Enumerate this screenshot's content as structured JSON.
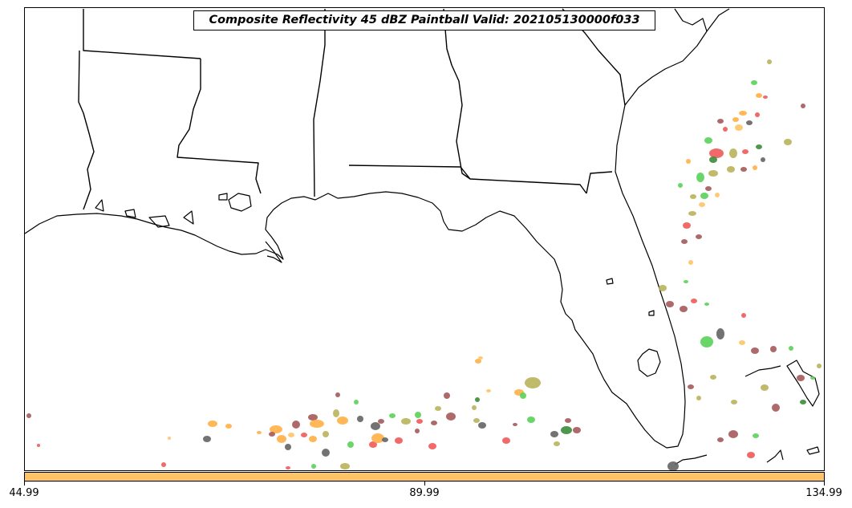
{
  "title": "Composite Reflectivity 45 dBZ Paintball Valid: 202105130000f033",
  "colorbar": {
    "color": "#ffc466",
    "ticks": [
      "44.99",
      "89.99",
      "134.99"
    ]
  },
  "map": {
    "region": "Gulf Coast / Florida",
    "features": [
      "state-borders",
      "coastline"
    ],
    "paintball_colors": [
      "#f05a5a",
      "#a55a5a",
      "#5ad25a",
      "#b9b45a",
      "#ffaf46",
      "#646464",
      "#ffc466",
      "#3c8c3c",
      "#d2965a"
    ]
  }
}
